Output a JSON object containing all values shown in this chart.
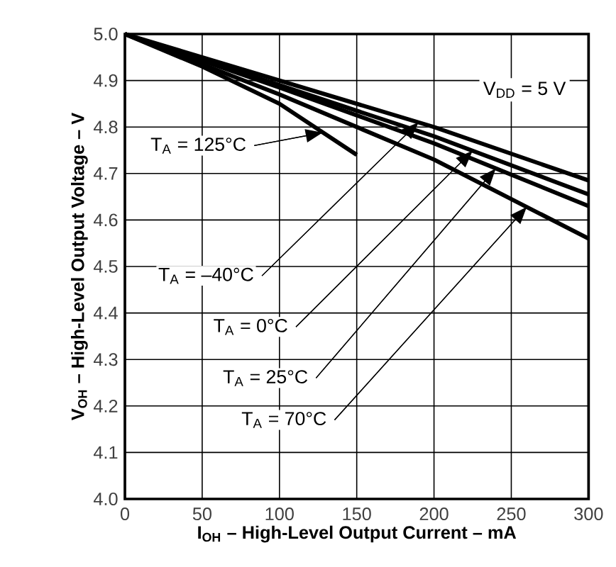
{
  "chart_data": {
    "type": "line",
    "xlabel": "I$_{OH}$ – High-Level Output Current – mA",
    "ylabel": "V$_{OH}$ – High-Level Output Voltage – V",
    "x": [
      0,
      100,
      200,
      300
    ],
    "series": [
      {
        "color": "#000000",
        "values": [
          5.0,
          4.9,
          4.8,
          4.685
        ]
      },
      {
        "color": "#000000",
        "values": [
          5.0,
          4.89,
          4.78,
          4.655
        ]
      },
      {
        "color": "#000000",
        "values": [
          5.0,
          4.885,
          4.765,
          4.63
        ]
      },
      {
        "color": "#000000",
        "values": [
          5.0,
          4.87,
          4.73,
          4.56
        ]
      },
      {
        "color": "#000000",
        "x": [
          0,
          50,
          100,
          150
        ],
        "values": [
          5.0,
          4.93,
          4.85,
          4.74
        ]
      }
    ],
    "annotations": [
      "V$_{DD}$ = 5 V",
      {
        "text": "T$_{A}$ = 125°C",
        "x": 128,
        "y": 4.788
      },
      "T$_{A}$ = –40°C",
      "T$_{A}$ = 0°C",
      "T$_{A}$ = 25°C",
      "T$_{A}$ = 70°C"
    ],
    "xlim": [
      0,
      300
    ],
    "xticks": [
      0,
      50,
      100,
      150,
      200,
      250,
      300
    ],
    "ylim": [
      4.0,
      5.0
    ],
    "yticks": [
      {
        "value": 4.0,
        "label": "4.0"
      },
      {
        "value": 4.1,
        "label": "4.1"
      },
      {
        "value": 4.2,
        "label": "4.2"
      },
      {
        "value": 4.3,
        "label": "4.3"
      },
      {
        "value": 4.4,
        "label": "4.4"
      },
      {
        "value": 4.5,
        "label": "4.5"
      },
      {
        "value": 4.6,
        "label": "4.6"
      },
      {
        "value": 4.7,
        "label": "4.7"
      },
      {
        "value": 4.8,
        "label": "4.8"
      },
      {
        "value": 4.9,
        "label": "4.9"
      },
      {
        "value": 5.0,
        "label": "5.0"
      }
    ],
    "grid": true,
    "line_style": "solid"
  }
}
